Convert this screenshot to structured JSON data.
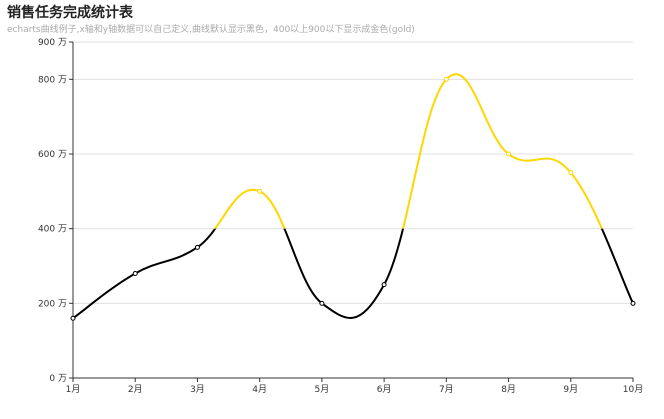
{
  "header": {
    "title": "销售任务完成统计表",
    "subtitle": "echarts曲线例子,x轴和y轴数据可以自己定义,曲线默认显示黑色，400以上900以下显示成金色(gold)"
  },
  "colors": {
    "default_line": "#000000",
    "highlight_line": "#FFD700",
    "grid": "#e0e0e0",
    "axis": "#333333"
  },
  "chart_data": {
    "type": "line",
    "smooth": true,
    "title": "销售任务完成统计表",
    "subtitle": "echarts曲线例子,x轴和y轴数据可以自己定义,曲线默认显示黑色，400以上900以下显示成金色(gold)",
    "categories": [
      "1月",
      "2月",
      "3月",
      "4月",
      "5月",
      "6月",
      "7月",
      "8月",
      "9月",
      "10月"
    ],
    "series": [
      {
        "values": [
          160,
          280,
          350,
          500,
          200,
          250,
          800,
          600,
          550,
          200
        ]
      }
    ],
    "ylim": [
      0,
      900
    ],
    "yticks": [
      0,
      200,
      400,
      600,
      800,
      900
    ],
    "ytick_labels": [
      "0 万",
      "200 万",
      "400 万",
      "600 万",
      "800 万",
      "900 万"
    ],
    "highlight_range": [
      400,
      900
    ],
    "grid": true,
    "legend": "none"
  }
}
